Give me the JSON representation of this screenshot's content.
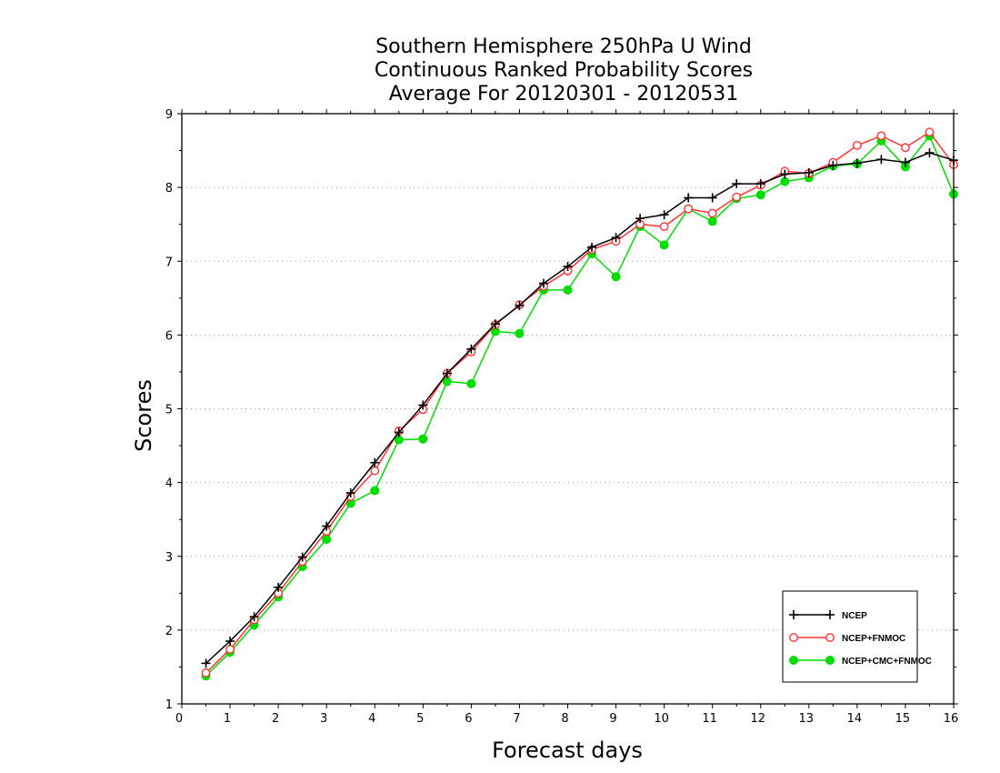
{
  "chart_data": {
    "type": "line",
    "title": [
      "Southern Hemisphere 250hPa U Wind",
      "Continuous Ranked Probability Scores",
      "Average For 20120301 - 20120531"
    ],
    "xlabel": "Forecast days",
    "ylabel": "Scores",
    "xlim": [
      0,
      16
    ],
    "ylim": [
      1,
      9
    ],
    "xticks": [
      "0",
      "1",
      "2",
      "3",
      "4",
      "5",
      "6",
      "7",
      "8",
      "9",
      "10",
      "11",
      "12",
      "13",
      "14",
      "15",
      "16"
    ],
    "yticks": [
      "1",
      "2",
      "3",
      "4",
      "5",
      "6",
      "7",
      "8",
      "9"
    ],
    "grid": "horizontal dotted",
    "legend_position": "bottom-right",
    "x": [
      0.5,
      1,
      1.5,
      2,
      2.5,
      3,
      3.5,
      4,
      4.5,
      5,
      5.5,
      6,
      6.5,
      7,
      7.5,
      8,
      8.5,
      9,
      9.5,
      10,
      10.5,
      11,
      11.5,
      12,
      12.5,
      13,
      13.5,
      14,
      14.5,
      15,
      15.5,
      16
    ],
    "series": [
      {
        "name": "NCEP",
        "color": "#000000",
        "marker": "plus",
        "values": [
          1.55,
          1.85,
          2.18,
          2.58,
          2.99,
          3.41,
          3.86,
          4.27,
          4.68,
          5.05,
          5.48,
          5.81,
          6.15,
          6.4,
          6.7,
          6.93,
          7.19,
          7.32,
          7.58,
          7.63,
          7.86,
          7.86,
          8.05,
          8.05,
          8.18,
          8.2,
          8.3,
          8.33,
          8.38,
          8.34,
          8.47,
          8.37
        ]
      },
      {
        "name": "NCEP+FNMOC",
        "color": "#ff3333",
        "marker": "open-circle",
        "values": [
          1.42,
          1.74,
          2.14,
          2.5,
          2.93,
          3.34,
          3.81,
          4.16,
          4.7,
          4.99,
          5.48,
          5.77,
          6.14,
          6.41,
          6.66,
          6.87,
          7.16,
          7.27,
          7.5,
          7.47,
          7.71,
          7.65,
          7.87,
          8.03,
          8.22,
          8.19,
          8.34,
          8.57,
          8.7,
          8.54,
          8.75,
          8.31
        ]
      },
      {
        "name": "NCEP+CMC+FNMOC",
        "color": "#00dd00",
        "marker": "filled-circle",
        "values": [
          1.38,
          1.7,
          2.07,
          2.45,
          2.86,
          3.23,
          3.72,
          3.89,
          4.58,
          4.59,
          5.37,
          5.34,
          6.05,
          6.02,
          6.61,
          6.61,
          7.1,
          6.79,
          7.47,
          7.22,
          7.71,
          7.54,
          7.85,
          7.9,
          8.08,
          8.13,
          8.29,
          8.32,
          8.63,
          8.28,
          8.7,
          7.91
        ]
      }
    ]
  }
}
